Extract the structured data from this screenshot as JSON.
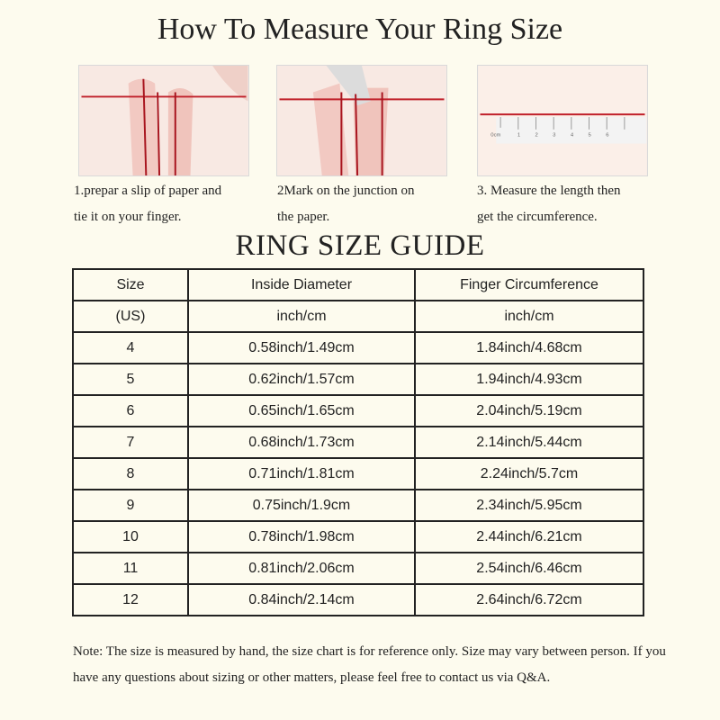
{
  "title": "How To Measure Your Ring Size",
  "steps": [
    {
      "caption_l1": "1.prepar a slip of paper and",
      "caption_l2": "tie it on your finger."
    },
    {
      "caption_l1": "2Mark on the  junction on",
      "caption_l2": "the paper."
    },
    {
      "caption_l1": "3. Measure the length then",
      "caption_l2": "get the circumference."
    }
  ],
  "ruler_labels": [
    "0cm",
    "1",
    "2",
    "3",
    "4",
    "5",
    "6"
  ],
  "guide_title": "RING SIZE  GUIDE",
  "table": {
    "header": [
      "Size",
      "Inside Diameter",
      "Finger Circumference"
    ],
    "units": [
      "(US)",
      "inch/cm",
      "inch/cm"
    ],
    "rows": [
      [
        "4",
        "0.58inch/1.49cm",
        "1.84inch/4.68cm"
      ],
      [
        "5",
        "0.62inch/1.57cm",
        "1.94inch/4.93cm"
      ],
      [
        "6",
        "0.65inch/1.65cm",
        "2.04inch/5.19cm"
      ],
      [
        "7",
        "0.68inch/1.73cm",
        "2.14inch/5.44cm"
      ],
      [
        "8",
        "0.71inch/1.81cm",
        "2.24inch/5.7cm"
      ],
      [
        "9",
        "0.75inch/1.9cm",
        "2.34inch/5.95cm"
      ],
      [
        "10",
        "0.78inch/1.98cm",
        "2.44inch/6.21cm"
      ],
      [
        "11",
        "0.81inch/2.06cm",
        "2.54inch/6.46cm"
      ],
      [
        "12",
        "0.84inch/2.14cm",
        "2.64inch/6.72cm"
      ]
    ]
  },
  "note": "Note: The size is measured by hand, the size chart is for reference only. Size may vary between person. If you have any questions about sizing or other matters, please feel free to contact us via Q&A.",
  "colors": {
    "background": "#fdfbee",
    "string": "#c0202a"
  }
}
